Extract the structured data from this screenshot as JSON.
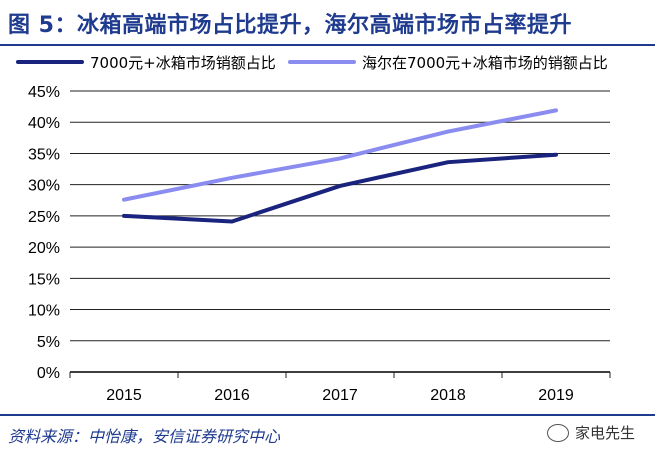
{
  "title": "图 5：冰箱高端市场占比提升，海尔高端市场市占率提升",
  "source": "资料来源：中怡康，安信证券研究中心",
  "watermark": "家电先生",
  "chart_data": {
    "type": "line",
    "x": [
      "2015",
      "2016",
      "2017",
      "2018",
      "2019"
    ],
    "ylim": [
      0,
      45
    ],
    "yticks": [
      0,
      5,
      10,
      15,
      20,
      25,
      30,
      35,
      40,
      45
    ],
    "ytick_labels": [
      "0%",
      "5%",
      "10%",
      "15%",
      "20%",
      "25%",
      "30%",
      "35%",
      "40%",
      "45%"
    ],
    "grid": true,
    "legend_position": "top",
    "series": [
      {
        "name": "7000元+冰箱市场销额占比",
        "values": [
          25.0,
          24.1,
          29.8,
          33.6,
          34.8
        ],
        "color": "#1a237e"
      },
      {
        "name": "海尔在7000元+冰箱市场的销额占比",
        "values": [
          27.6,
          31.1,
          34.2,
          38.5,
          41.9
        ],
        "color": "#8a8cf0"
      }
    ]
  }
}
